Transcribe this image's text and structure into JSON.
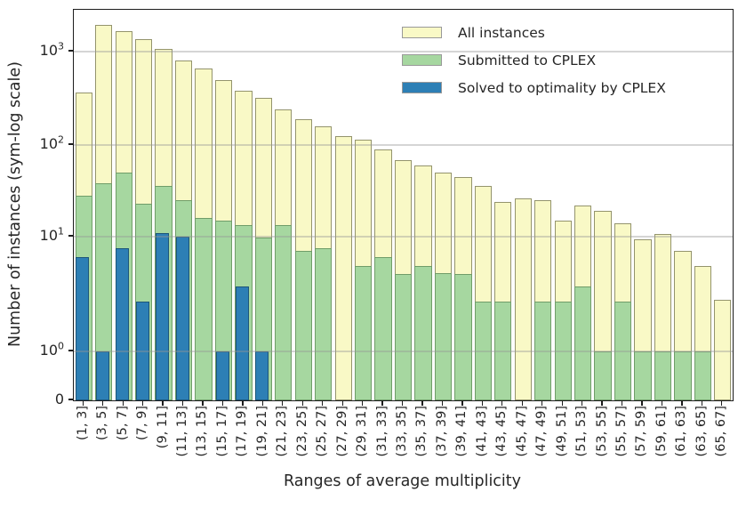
{
  "figure": {
    "y_axis_label": "Number of instances (sym-log scale)",
    "x_axis_label": "Ranges of average multiplicity"
  },
  "legend": {
    "items": [
      {
        "label": "All instances",
        "color": "#f9f9c6",
        "edge": "#94946d"
      },
      {
        "label": "Submitted to CPLEX",
        "color": "#a6d7a0",
        "edge": "#709d69"
      },
      {
        "label": "Solved to optimality by CPLEX",
        "color": "#2d7fb5",
        "edge": "#1d5679"
      }
    ]
  },
  "chart_data": {
    "type": "bar",
    "subtype": "overlaid-histogram",
    "title": "",
    "xlabel": "Ranges of average multiplicity",
    "ylabel": "Number of instances (sym-log scale)",
    "y_scale": "sym-log",
    "ylim": [
      0,
      2400
    ],
    "grid": "horizontal major gridlines",
    "legend_position": "upper right",
    "categories": [
      "(1, 3]",
      "(3, 5]",
      "(5, 7]",
      "(7, 9]",
      "(9, 11]",
      "(11, 13]",
      "(13, 15]",
      "(15, 17]",
      "(17, 19]",
      "(19, 21]",
      "(21, 23]",
      "(23, 25]",
      "(25, 27]",
      "(27, 29]",
      "(29, 31]",
      "(31, 33]",
      "(33, 35]",
      "(35, 37]",
      "(37, 39]",
      "(39, 41]",
      "(41, 43]",
      "(43, 45]",
      "(45, 47]",
      "(47, 49]",
      "(49, 51]",
      "(51, 53]",
      "(53, 55]",
      "(55, 57]",
      "(57, 59]",
      "(59, 61]",
      "(61, 63]",
      "(63, 65]",
      "(65, 67]"
    ],
    "series": [
      {
        "name": "All instances",
        "values": [
          365,
          1950,
          1650,
          1350,
          1080,
          800,
          660,
          500,
          380,
          320,
          240,
          190,
          160,
          125,
          115,
          90,
          68,
          60,
          50,
          45,
          36,
          24,
          26,
          25,
          15,
          22,
          19,
          14,
          9.5,
          10.8,
          7.5,
          5.6,
          2.8
        ]
      },
      {
        "name": "Submitted to CPLEX",
        "values": [
          28,
          38,
          50,
          23,
          36,
          25,
          16,
          15,
          13.5,
          9.8,
          13.5,
          7.5,
          8,
          0,
          5.6,
          6.6,
          4.7,
          5.6,
          4.8,
          4.7,
          2.7,
          2.7,
          0,
          2.7,
          2.7,
          3.7,
          1,
          2.7,
          1,
          1,
          1,
          1,
          0
        ]
      },
      {
        "name": "Solved to optimality by CPLEX",
        "values": [
          6.6,
          1,
          8,
          2.7,
          10.9,
          10,
          0,
          1,
          3.7,
          1,
          0,
          0,
          0,
          0,
          0,
          0,
          0,
          0,
          0,
          0,
          0,
          0,
          0,
          0,
          0,
          0,
          0,
          0,
          0,
          0,
          0,
          0,
          0
        ]
      }
    ],
    "y_ticks": [
      {
        "base": "10",
        "exp": "3",
        "value": 1000
      },
      {
        "base": "10",
        "exp": "2",
        "value": 100
      },
      {
        "base": "10",
        "exp": "1",
        "value": 10
      },
      {
        "base": "10",
        "exp": "0",
        "value": 1
      },
      {
        "base": "0",
        "exp": "",
        "value": 0
      }
    ]
  }
}
